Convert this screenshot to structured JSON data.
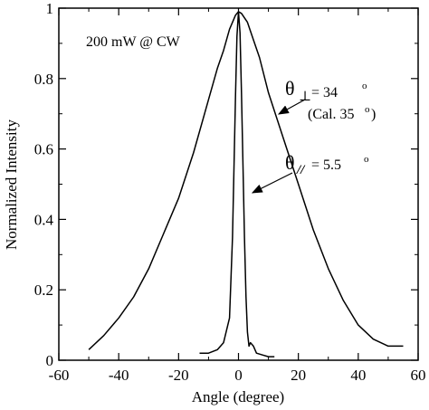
{
  "chart_data": {
    "type": "line",
    "title": "",
    "xlabel": "Angle (degree)",
    "ylabel": "Normalized Intensity",
    "xlim": [
      -60,
      60
    ],
    "ylim": [
      0,
      1
    ],
    "xticks": [
      -60,
      -40,
      -20,
      0,
      20,
      40,
      60
    ],
    "yticks": [
      0,
      0.2,
      0.4,
      0.6,
      0.8,
      1
    ],
    "xtick_labels": [
      "-60",
      "-40",
      "-20",
      "0",
      "20",
      "40",
      "60"
    ],
    "ytick_labels": [
      "0",
      "0.2",
      "0.4",
      "0.6",
      "0.8",
      "1"
    ],
    "grid": false,
    "legend": "none",
    "series": [
      {
        "x": [
          -50,
          -45,
          -40,
          -35,
          -30,
          -25,
          -20,
          -15,
          -10,
          -7,
          -5,
          -3,
          -1,
          0,
          1,
          3,
          5,
          7,
          10,
          15,
          20,
          25,
          30,
          35,
          40,
          45,
          50,
          55
        ],
        "y": [
          0.03,
          0.07,
          0.12,
          0.18,
          0.26,
          0.36,
          0.46,
          0.59,
          0.74,
          0.83,
          0.88,
          0.94,
          0.98,
          0.99,
          0.985,
          0.96,
          0.91,
          0.86,
          0.76,
          0.63,
          0.5,
          0.37,
          0.26,
          0.17,
          0.1,
          0.06,
          0.04,
          0.04
        ]
      },
      {
        "x": [
          -13,
          -10,
          -7,
          -5,
          -3,
          -2,
          -1,
          -0.5,
          0,
          0.5,
          1,
          1.5,
          2,
          2.5,
          3,
          3.5,
          4,
          5,
          6,
          8,
          10,
          12
        ],
        "y": [
          0.02,
          0.02,
          0.03,
          0.05,
          0.12,
          0.35,
          0.75,
          0.92,
          0.99,
          0.93,
          0.76,
          0.55,
          0.35,
          0.18,
          0.08,
          0.04,
          0.05,
          0.04,
          0.02,
          0.015,
          0.01,
          0.01
        ]
      }
    ],
    "annotations": {
      "condition": "200 mW @ CW",
      "perp_theta": "θ",
      "perp_symbol": "⊥",
      "perp_value": "= 34",
      "perp_degree": "o",
      "perp_cal_prefix": "(Cal. 35",
      "perp_cal_degree": "o",
      "perp_cal_suffix": ")",
      "par_theta": "θ",
      "par_symbol": "//",
      "par_value": "= 5.5",
      "par_degree": "o"
    }
  }
}
